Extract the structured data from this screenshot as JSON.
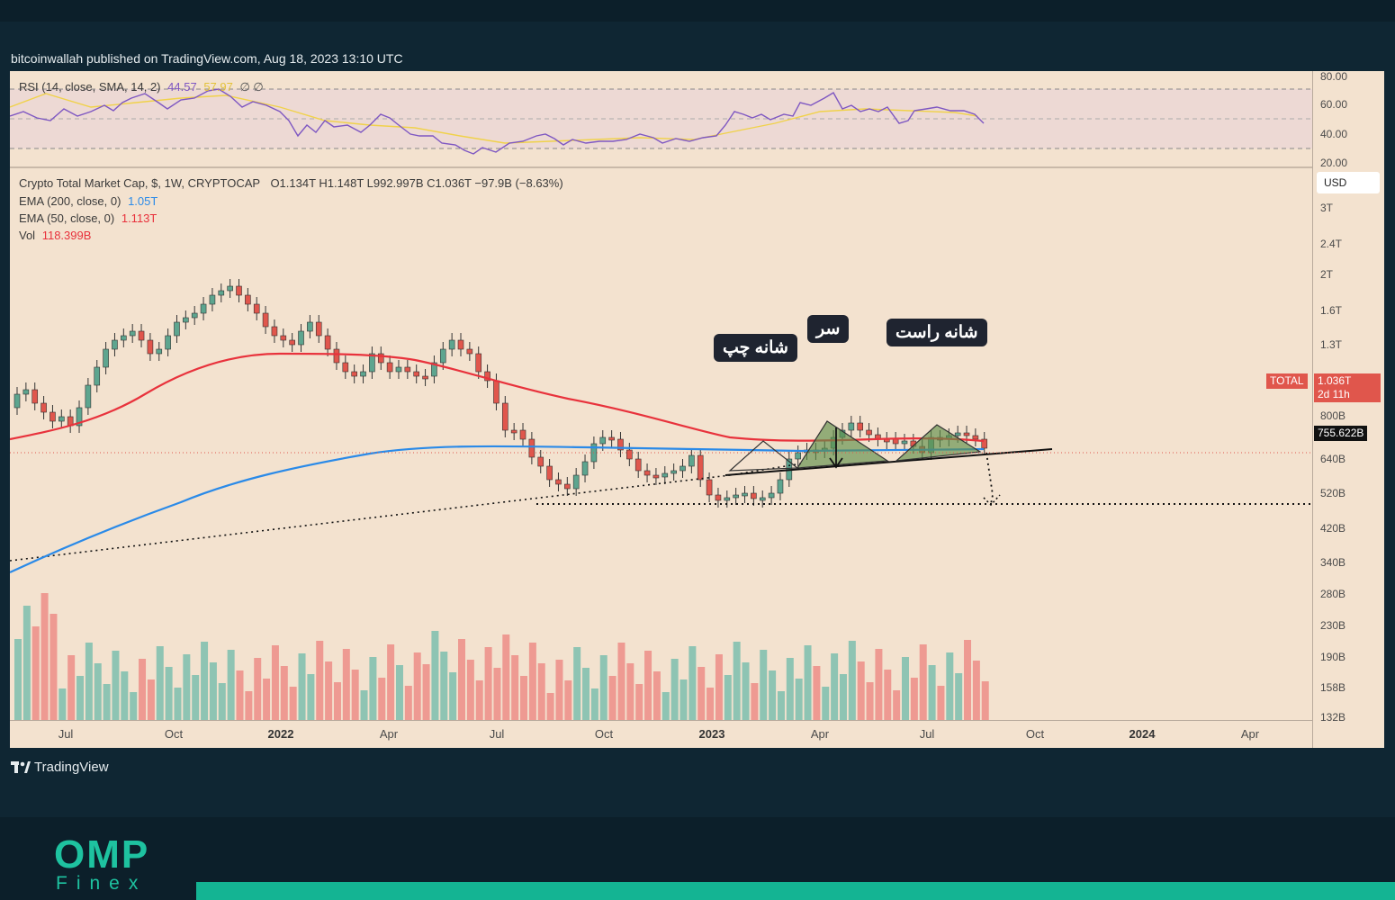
{
  "byline": "bitcoinwallah published on TradingView.com, Aug 18, 2023 13:10 UTC",
  "rsi": {
    "label": "RSI (14, close, SMA, 14, 2)",
    "value": "44.57",
    "sma_value": "57.97",
    "extra": "∅ ∅",
    "axis": [
      "80.00",
      "60.00",
      "40.00",
      "20.00"
    ],
    "colors": {
      "rsi": "#7e57c2",
      "sma": "#f5d33a"
    }
  },
  "symbol": {
    "title": "Crypto Total Market Cap, $, 1W, CRYPTOCAP",
    "ohlc": "O1.134T  H1.148T  L992.997B  C1.036T  −97.9B (−8.63%)"
  },
  "indicators": {
    "ema200": {
      "label": "EMA (200, close, 0)",
      "value": "1.05T",
      "color": "#2a8ae8"
    },
    "ema50": {
      "label": "EMA (50, close, 0)",
      "value": "1.113T",
      "color": "#e8323c"
    },
    "vol": {
      "label": "Vol",
      "value": "118.399B",
      "color": "#e8323c"
    }
  },
  "currency": "USD",
  "price_axis": [
    "3T",
    "2.4T",
    "2T",
    "1.6T",
    "1.3T",
    "800B",
    "640B",
    "520B",
    "420B",
    "340B",
    "280B",
    "230B",
    "190B",
    "158B",
    "132B"
  ],
  "price_tags": {
    "symbol": "TOTAL",
    "price": "1.036T",
    "countdown": "2d 11h",
    "target": "755.622B"
  },
  "time_axis": [
    {
      "label": "Jul",
      "bold": false
    },
    {
      "label": "Oct",
      "bold": false
    },
    {
      "label": "2022",
      "bold": true
    },
    {
      "label": "Apr",
      "bold": false
    },
    {
      "label": "Jul",
      "bold": false
    },
    {
      "label": "Oct",
      "bold": false
    },
    {
      "label": "2023",
      "bold": true
    },
    {
      "label": "Apr",
      "bold": false
    },
    {
      "label": "Jul",
      "bold": false
    },
    {
      "label": "Oct",
      "bold": false
    },
    {
      "label": "2024",
      "bold": true
    },
    {
      "label": "Apr",
      "bold": false
    }
  ],
  "annotations": {
    "left_shoulder": "شانه چپ",
    "head": "سر",
    "right_shoulder": "شانه راست"
  },
  "footer": {
    "tv_brand": "TradingView",
    "omp_word": "OMP",
    "omp_sub": "Finex"
  },
  "colors": {
    "up": "#5da58f",
    "down": "#e0564c",
    "background": "#f3e2cf",
    "brand": "#1ec2a0"
  }
}
